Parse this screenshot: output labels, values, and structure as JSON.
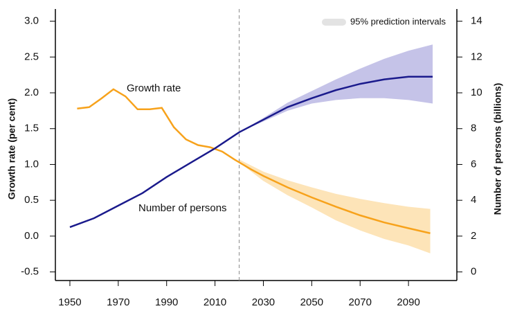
{
  "chart_data": {
    "type": "line",
    "xlim": [
      1944,
      2110
    ],
    "xticks": [
      1950,
      1970,
      1990,
      2010,
      2030,
      2050,
      2070,
      2090
    ],
    "ylim": [
      -0.62,
      3.17
    ],
    "yticks": [
      -0.5,
      {
        "value": 0,
        "label": "0.0"
      },
      0.5,
      {
        "value": 1,
        "label": "1.0"
      },
      1.5,
      {
        "value": 2,
        "label": "2.0"
      },
      2.5,
      {
        "value": 3,
        "label": "3.0"
      }
    ],
    "y2lim": [
      -0.48,
      14.68
    ],
    "y2ticks": [
      0,
      2,
      4,
      6,
      8,
      10,
      12,
      14
    ],
    "ylabel": "Growth rate (per cent)",
    "y2label": "Number of persons (billions)",
    "vline_x": 2020,
    "legend": {
      "label": "95% prediction intervals",
      "color": "#e3e3e3",
      "position": "upper right"
    },
    "series": [
      {
        "name": "Growth rate",
        "color": "#f7a21b",
        "band_color": "#fde4b8",
        "axis": "y",
        "x": [
          1953,
          1958,
          1963,
          1968,
          1973,
          1978,
          1983,
          1988,
          1993,
          1998,
          2003,
          2008,
          2013,
          2018,
          2025,
          2030,
          2040,
          2050,
          2060,
          2070,
          2080,
          2090,
          2099
        ],
        "values": [
          1.78,
          1.8,
          1.92,
          2.05,
          1.95,
          1.77,
          1.77,
          1.79,
          1.52,
          1.35,
          1.27,
          1.24,
          1.18,
          1.07,
          0.93,
          0.84,
          0.68,
          0.54,
          0.41,
          0.29,
          0.19,
          0.11,
          0.04
        ],
        "band_x": [
          2020,
          2030,
          2040,
          2050,
          2060,
          2070,
          2080,
          2090,
          2099
        ],
        "band_lower": [
          1.03,
          0.77,
          0.57,
          0.4,
          0.22,
          0.08,
          -0.04,
          -0.13,
          -0.24
        ],
        "band_upper": [
          1.07,
          0.9,
          0.78,
          0.68,
          0.59,
          0.52,
          0.46,
          0.41,
          0.38
        ]
      },
      {
        "name": "Number of persons",
        "color": "#1a1a8c",
        "band_color": "#c5c3e8",
        "axis": "y2",
        "x": [
          1950,
          1960,
          1970,
          1980,
          1990,
          2000,
          2010,
          2020,
          2030,
          2040,
          2050,
          2060,
          2070,
          2080,
          2090,
          2100
        ],
        "values": [
          2.5,
          3.0,
          3.7,
          4.4,
          5.3,
          6.1,
          6.9,
          7.8,
          8.5,
          9.2,
          9.7,
          10.15,
          10.5,
          10.75,
          10.9,
          10.9
        ],
        "band_x": [
          2020,
          2030,
          2040,
          2050,
          2060,
          2070,
          2080,
          2090,
          2100
        ],
        "band_lower": [
          7.8,
          8.4,
          9.0,
          9.4,
          9.6,
          9.7,
          9.7,
          9.6,
          9.4
        ],
        "band_upper": [
          7.8,
          8.6,
          9.45,
          10.1,
          10.75,
          11.35,
          11.9,
          12.35,
          12.7
        ]
      }
    ]
  }
}
